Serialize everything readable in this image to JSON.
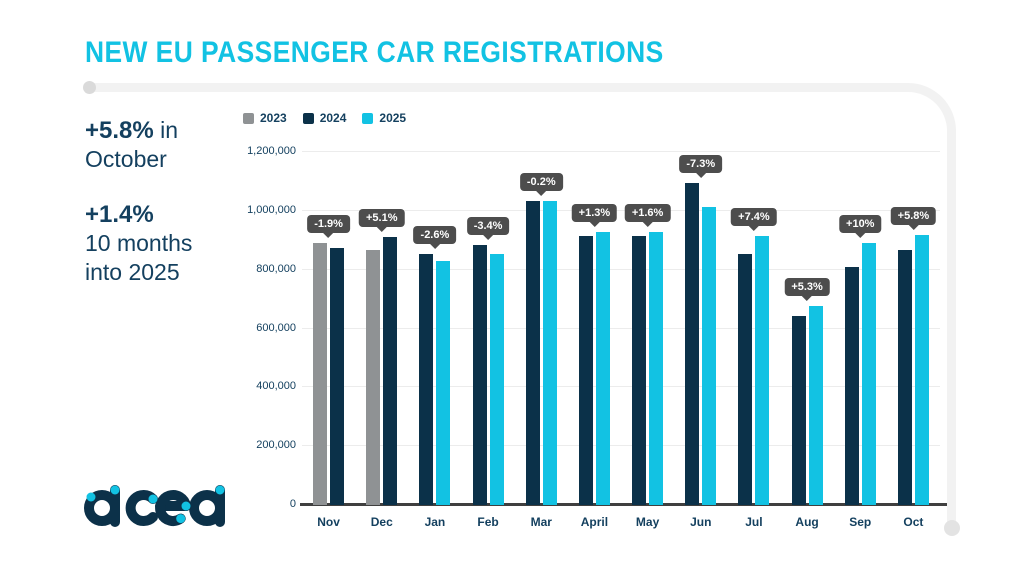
{
  "page": {
    "title": "NEW EU PASSENGER CAR REGISTRATIONS"
  },
  "stats": {
    "first": {
      "highlight": "+5.8%",
      "suffix": " in",
      "line2": "October"
    },
    "second": {
      "highlight": "+1.4%",
      "line2": "10 months",
      "line3": "into 2025"
    }
  },
  "logo": {
    "text": "acea"
  },
  "colors": {
    "accent_cyan": "#12c2e3",
    "navy": "#0b3149",
    "gray": "#8f9294",
    "tooltip_bg": "#4d4d4d",
    "text_navy": "#14405f"
  },
  "chart_data": {
    "type": "bar",
    "title": "NEW EU PASSENGER CAR REGISTRATIONS",
    "categories": [
      "Nov",
      "Dec",
      "Jan",
      "Feb",
      "Mar",
      "April",
      "May",
      "Jun",
      "Jul",
      "Aug",
      "Sep",
      "Oct"
    ],
    "series": [
      {
        "name": "2023",
        "color": "#8f9294",
        "values": [
          890000,
          867000,
          null,
          null,
          null,
          null,
          null,
          null,
          null,
          null,
          null,
          null
        ]
      },
      {
        "name": "2024",
        "color": "#0b3149",
        "values": [
          873000,
          911000,
          853000,
          884000,
          1034000,
          915000,
          913000,
          1094000,
          852000,
          642000,
          810000,
          867000
        ]
      },
      {
        "name": "2025",
        "color": "#12c2e3",
        "values": [
          null,
          null,
          831000,
          854000,
          1032000,
          927000,
          928000,
          1014000,
          915000,
          676000,
          891000,
          917000
        ]
      }
    ],
    "pct_labels": [
      "-1.9%",
      "+5.1%",
      "-2.6%",
      "-3.4%",
      "-0.2%",
      "+1.3%",
      "+1.6%",
      "-7.3%",
      "+7.4%",
      "+5.3%",
      "+10%",
      "+5.8%"
    ],
    "ylim": [
      0,
      1200000
    ],
    "yticks": [
      "0",
      "200,000",
      "400,000",
      "600,000",
      "800,000",
      "1,000,000",
      "1,200,000"
    ],
    "grid": true,
    "legend_position": "top-left",
    "xlabel": "",
    "ylabel": ""
  }
}
